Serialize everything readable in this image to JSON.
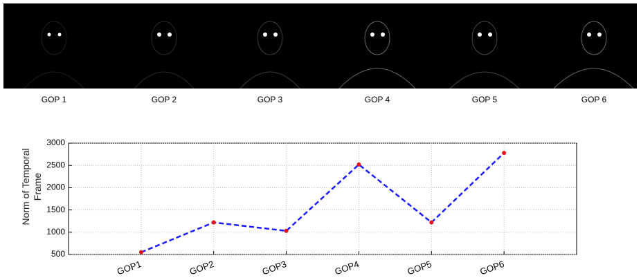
{
  "frames": {
    "labels": [
      "GOP 1",
      "GOP 2",
      "GOP 3",
      "GOP 4",
      "GOP 5",
      "GOP 6"
    ]
  },
  "chart_data": {
    "type": "line",
    "y_label": "Norm of Temporal Frame",
    "categories": [
      "GOP1",
      "GOP2",
      "GOP3",
      "GOP4",
      "GOP5",
      "GOP6"
    ],
    "series": [
      {
        "color": "#1a1aff",
        "marker_color": "#e8141c",
        "values": [
          550,
          1220,
          1030,
          2520,
          1220,
          2780
        ]
      }
    ],
    "ylim": [
      500,
      3000
    ],
    "yticks": [
      500,
      1000,
      1500,
      2000,
      2500,
      3000
    ],
    "grid": true
  }
}
